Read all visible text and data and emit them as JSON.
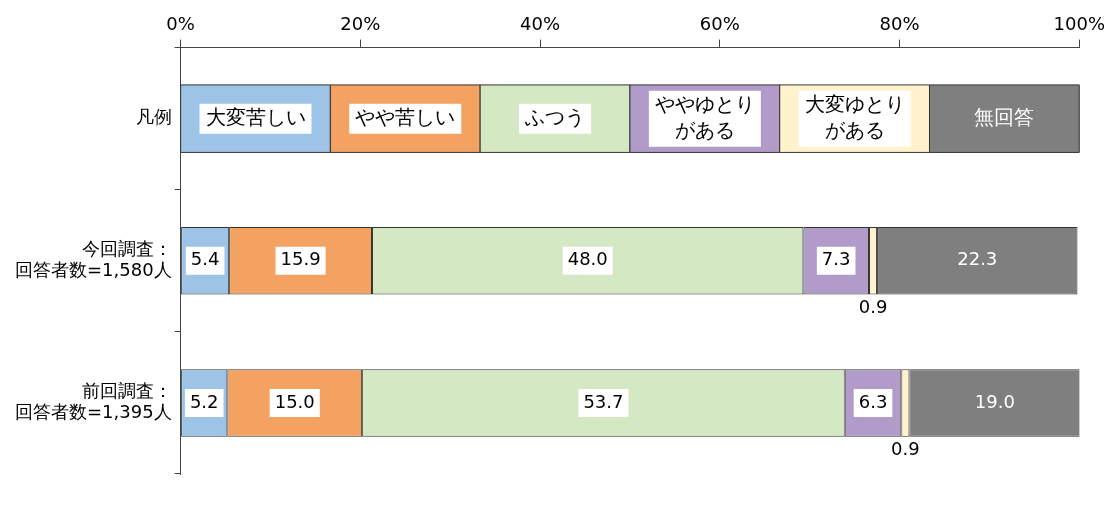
{
  "chart_data": {
    "type": "bar",
    "orientation": "horizontal",
    "stacked": true,
    "legend": "top",
    "legend_title": "凡例",
    "categories": [
      "今回調査：回答者数=1,580人",
      "前回調査：回答者数=1,395人"
    ],
    "xlim": [
      0,
      100
    ],
    "xticks": [
      {
        "value": 0,
        "label": "0%"
      },
      {
        "value": 20,
        "label": "20%"
      },
      {
        "value": 40,
        "label": "40%"
      },
      {
        "value": 60,
        "label": "60%"
      },
      {
        "value": 80,
        "label": "80%"
      },
      {
        "value": 100,
        "label": "100%"
      }
    ],
    "grid": false,
    "series": [
      {
        "name": "大変苦しい",
        "color": "#9dc3e6",
        "values": [
          5.4,
          5.2
        ],
        "value_labels": [
          "5.4",
          "5.2"
        ]
      },
      {
        "name": "やや苦しい",
        "color": "#f4a261",
        "values": [
          15.9,
          15.0
        ],
        "value_labels": [
          "15.9",
          "15.0"
        ]
      },
      {
        "name": "ふつう",
        "color": "#d5e8c4",
        "values": [
          48.0,
          53.7
        ],
        "value_labels": [
          "48.0",
          "53.7"
        ]
      },
      {
        "name": "ややゆとりがある",
        "color": "#b09bc9",
        "values": [
          7.3,
          6.3
        ],
        "value_labels": [
          "7.3",
          "6.3"
        ]
      },
      {
        "name": "大変ゆとりがある",
        "color": "#fff2cc",
        "values": [
          0.9,
          0.9
        ],
        "value_labels": [
          "0.9",
          "0.9"
        ]
      },
      {
        "name": "無回答",
        "color": "#7f7f7f",
        "values": [
          22.3,
          19.0
        ],
        "value_labels": [
          "22.3",
          "19.0"
        ]
      }
    ]
  }
}
